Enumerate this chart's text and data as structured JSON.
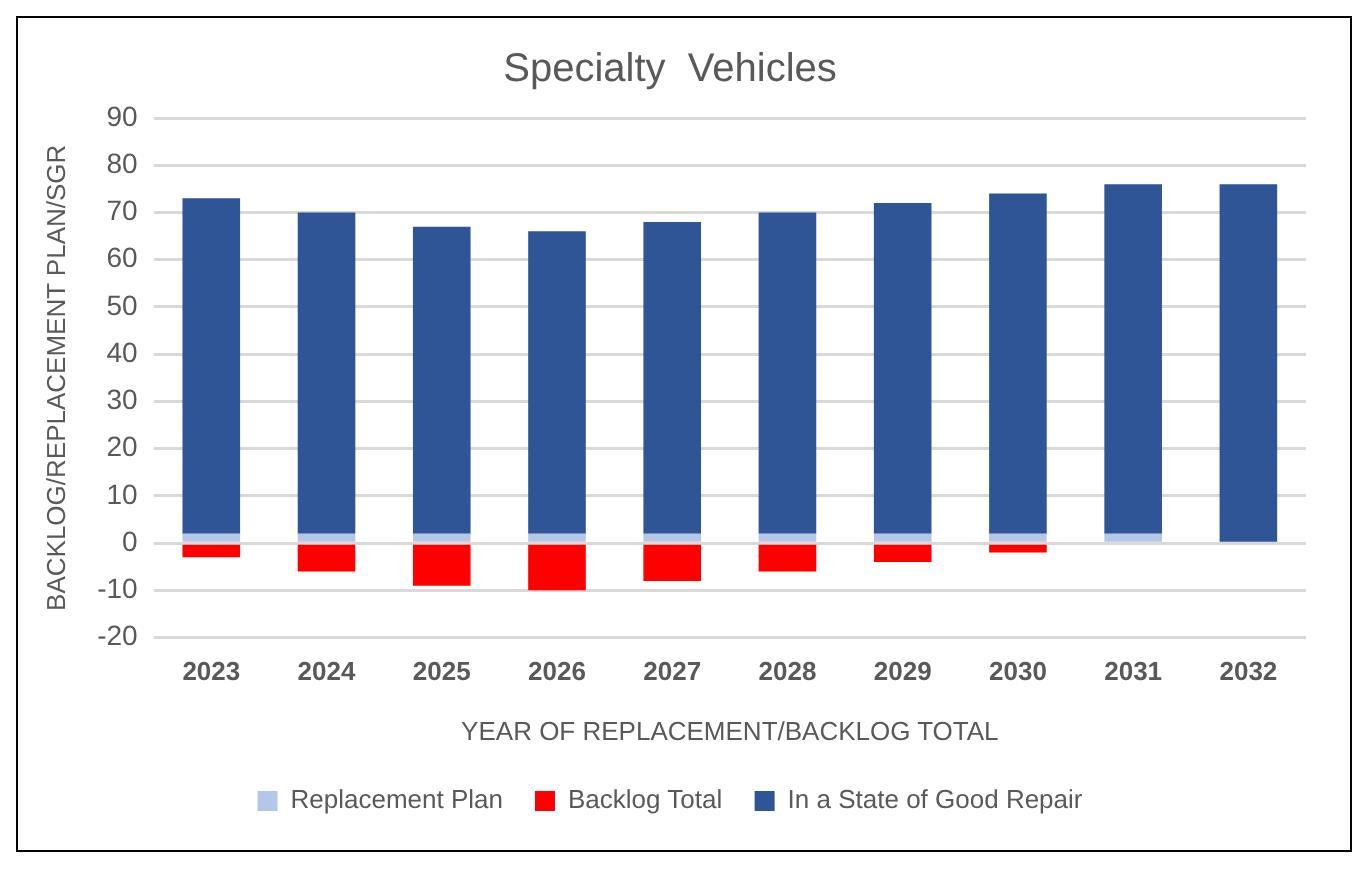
{
  "chart_data": {
    "type": "bar",
    "title": "Specialty  Vehicles",
    "xlabel": "YEAR OF REPLACEMENT/BACKLOG TOTAL",
    "ylabel": "BACKLOG/REPLACEMENT PLAN/SGR",
    "categories": [
      "2023",
      "2024",
      "2025",
      "2026",
      "2027",
      "2028",
      "2029",
      "2030",
      "2031",
      "2032"
    ],
    "stacked": true,
    "series": [
      {
        "name": "Replacement Plan",
        "color": "#b4c7e7",
        "values": [
          2,
          2,
          2,
          2,
          2,
          2,
          2,
          2,
          2,
          0
        ]
      },
      {
        "name": "Backlog Total",
        "color": "#ff0000",
        "values": [
          -3,
          -6,
          -9,
          -10,
          -8,
          -6,
          -4,
          -2,
          0,
          0
        ]
      },
      {
        "name": "In a State of Good Repair",
        "color": "#2f5597",
        "values": [
          71,
          68,
          65,
          64,
          66,
          68,
          70,
          72,
          74,
          76
        ]
      }
    ],
    "ylim": [
      -20,
      90
    ],
    "yticks": [
      -20,
      -10,
      0,
      10,
      20,
      30,
      40,
      50,
      60,
      70,
      80,
      90
    ],
    "grid": "y",
    "legend": "bottom"
  }
}
